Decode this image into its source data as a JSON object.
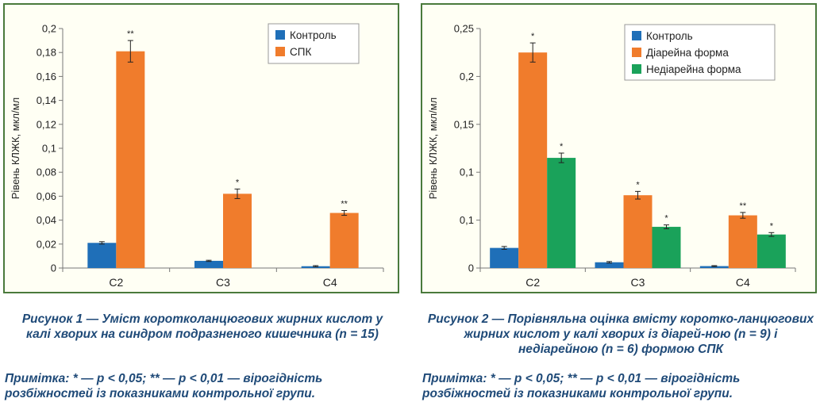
{
  "colors": {
    "control": "#1f6fb8",
    "ibs": "#f07c2c",
    "nondiarrhea": "#1aa25a",
    "frame": "#4a7a3c",
    "caption": "#1f4a78"
  },
  "charts": [
    {
      "ylabel": "Рівень КЛЖК, мкл/мл",
      "caption": "Рисунок 1 — Уміст коротколанцюгових жирних кислот у калі хворих на синдром подразненого кишечника (n = 15)",
      "note": "Примітка: * — р < 0,05; ** — р < 0,01 — вірогідність розбіжностей із показниками контрольної групи."
    },
    {
      "ylabel": "Рівень КЛЖК, мкл/мл",
      "caption": "Рисунок 2 — Порівняльна оцінка вмісту коротко-ланцюгових жирних кислот у калі хворих із діарей-ною (n = 9) і недіарейною (n = 6) формою СПК",
      "note": "Примітка: * — р < 0,05; ** — р < 0,01 — вірогідність розбіжностей із показниками контрольної групи."
    }
  ],
  "chart_data": [
    {
      "type": "bar",
      "categories": [
        "С2",
        "С3",
        "С4"
      ],
      "ylim": [
        0,
        0.2
      ],
      "yticks": [
        "0",
        "0,02",
        "0,04",
        "0,06",
        "0,08",
        "0,1",
        "0,12",
        "0,14",
        "0,16",
        "0,18",
        "0,2"
      ],
      "ylabel": "Рівень КЛЖК, мкл/мл",
      "legend_position": "top-right",
      "grid": false,
      "series": [
        {
          "name": "Контроль",
          "values": [
            0.021,
            0.006,
            0.0015
          ],
          "errors": [
            0.001,
            0.0005,
            0.0005
          ],
          "marks": [
            "",
            "",
            ""
          ]
        },
        {
          "name": "СПК",
          "values": [
            0.181,
            0.062,
            0.046
          ],
          "errors": [
            0.009,
            0.004,
            0.002
          ],
          "marks": [
            "**",
            "*",
            "**"
          ]
        }
      ]
    },
    {
      "type": "bar",
      "categories": [
        "С2",
        "С3",
        "С4"
      ],
      "ylim": [
        0,
        0.25
      ],
      "yticks": [
        "0",
        "0,05",
        "0,1",
        "0,15",
        "0,2",
        "0,25"
      ],
      "yticks_display": [
        "0",
        "0,1",
        "0,1",
        "0,15",
        "0,2",
        "0,25"
      ],
      "ylabel": "Рівень КЛЖК, мкл/мл",
      "legend_position": "top-right",
      "grid": false,
      "series": [
        {
          "name": "Контроль",
          "values": [
            0.021,
            0.006,
            0.002
          ],
          "errors": [
            0.0015,
            0.0008,
            0.0005
          ],
          "marks": [
            "",
            "",
            ""
          ]
        },
        {
          "name": "Діарейна форма",
          "values": [
            0.225,
            0.076,
            0.055
          ],
          "errors": [
            0.01,
            0.004,
            0.003
          ],
          "marks": [
            "*",
            "*",
            "**"
          ]
        },
        {
          "name": "Недіарейна форма",
          "values": [
            0.115,
            0.043,
            0.035
          ],
          "errors": [
            0.005,
            0.002,
            0.002
          ],
          "marks": [
            "*",
            "*",
            "*"
          ]
        }
      ]
    }
  ]
}
